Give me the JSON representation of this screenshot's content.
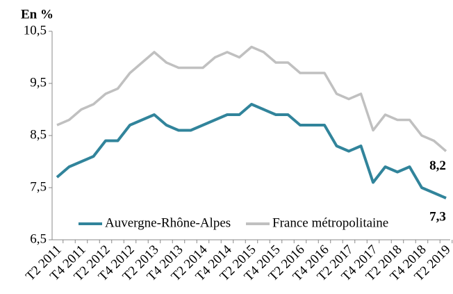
{
  "chart_data": {
    "type": "line",
    "title": "En %",
    "categories": [
      "T2 2011",
      null,
      "T4 2011",
      null,
      "T2 2012",
      null,
      "T4 2012",
      null,
      "T2 2013",
      null,
      "T4 2013",
      null,
      "T2 2014",
      null,
      "T4 2014",
      null,
      "T2 2015",
      null,
      "T4 2015",
      null,
      "T2 2016",
      null,
      "T4 2016",
      null,
      "T2 2017",
      null,
      "T4 2017",
      null,
      "T2 2018",
      null,
      "T4 2018",
      null,
      "T2 2019"
    ],
    "series": [
      {
        "name": "Auvergne-Rhône-Alpes",
        "color": "#31849b",
        "values": [
          7.7,
          7.9,
          8.0,
          8.1,
          8.4,
          8.4,
          8.7,
          8.8,
          8.9,
          8.7,
          8.6,
          8.6,
          8.7,
          8.8,
          8.9,
          8.9,
          9.1,
          9.0,
          8.9,
          8.9,
          8.7,
          8.7,
          8.7,
          8.3,
          8.2,
          8.3,
          7.6,
          7.9,
          7.8,
          7.9,
          7.5,
          7.4,
          7.3
        ],
        "value_labels": [
          null,
          null,
          null,
          null,
          null,
          null,
          null,
          null,
          null,
          null,
          null,
          null,
          null,
          null,
          null,
          null,
          null,
          null,
          null,
          null,
          null,
          null,
          null,
          null,
          null,
          null,
          null,
          null,
          null,
          null,
          null,
          null,
          "7,3"
        ]
      },
      {
        "name": "France métropolitaine",
        "color": "#c0c0c0",
        "values": [
          8.7,
          8.8,
          9.0,
          9.1,
          9.3,
          9.4,
          9.7,
          9.9,
          10.1,
          9.9,
          9.8,
          9.8,
          9.8,
          10.0,
          10.1,
          10.0,
          10.2,
          10.1,
          9.9,
          9.9,
          9.7,
          9.7,
          9.7,
          9.3,
          9.2,
          9.3,
          8.6,
          8.9,
          8.8,
          8.8,
          8.5,
          8.4,
          8.2
        ],
        "value_labels": [
          null,
          null,
          null,
          null,
          null,
          null,
          null,
          null,
          null,
          null,
          null,
          null,
          null,
          null,
          null,
          null,
          null,
          null,
          null,
          null,
          null,
          null,
          null,
          null,
          null,
          null,
          null,
          null,
          null,
          null,
          null,
          null,
          "8,2"
        ]
      }
    ],
    "ylim": [
      6.5,
      10.5
    ],
    "yticks": [
      {
        "value": 6.5,
        "label": "6,5"
      },
      {
        "value": 7.5,
        "label": "7,5"
      },
      {
        "value": 8.5,
        "label": "8,5"
      },
      {
        "value": 9.5,
        "label": "9,5"
      },
      {
        "value": 10.5,
        "label": "10,5"
      }
    ],
    "grid": false,
    "legend": "bottom"
  }
}
